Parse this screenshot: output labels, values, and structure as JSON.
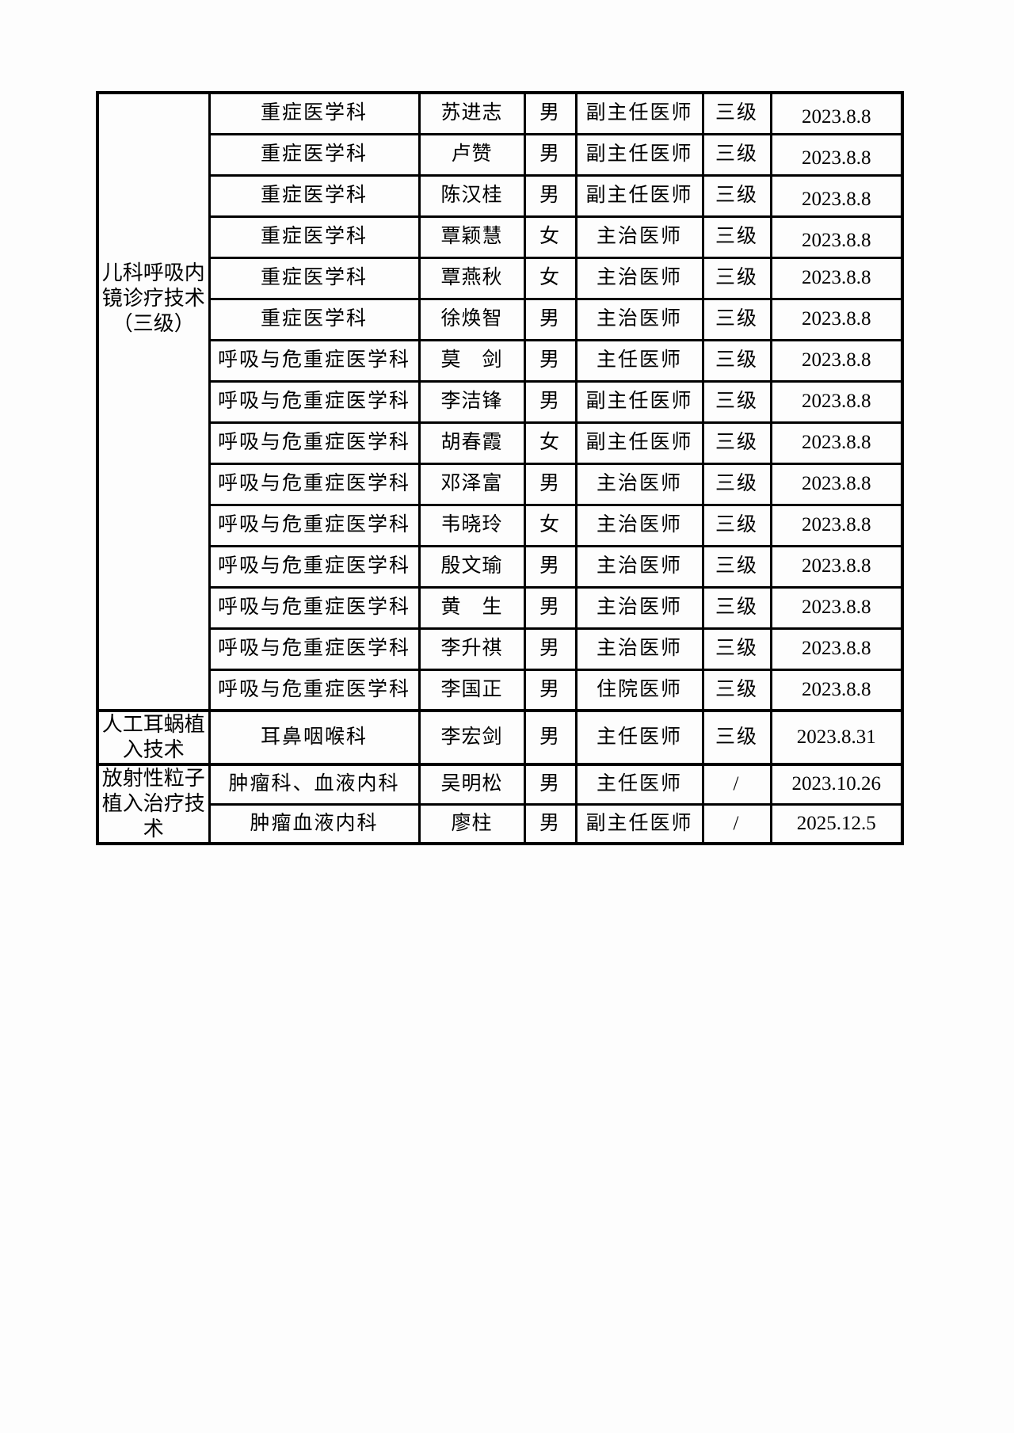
{
  "table": {
    "border_color": "#000000",
    "groups": [
      {
        "technique": "儿科呼吸内镜诊疗技术（三级）",
        "rows": [
          {
            "department": "重症医学科",
            "name": "苏进志",
            "gender": "男",
            "title": "副主任医师",
            "level": "三级",
            "date": "2023.8.8"
          },
          {
            "department": "重症医学科",
            "name": "卢赞",
            "gender": "男",
            "title": "副主任医师",
            "level": "三级",
            "date": "2023.8.8"
          },
          {
            "department": "重症医学科",
            "name": "陈汉桂",
            "gender": "男",
            "title": "副主任医师",
            "level": "三级",
            "date": "2023.8.8"
          },
          {
            "department": "重症医学科",
            "name": "覃颖慧",
            "gender": "女",
            "title": "主治医师",
            "level": "三级",
            "date": "2023.8.8"
          },
          {
            "department": "重症医学科",
            "name": "覃燕秋",
            "gender": "女",
            "title": "主治医师",
            "level": "三级",
            "date": "2023.8.8"
          },
          {
            "department": "重症医学科",
            "name": "徐焕智",
            "gender": "男",
            "title": "主治医师",
            "level": "三级",
            "date": "2023.8.8"
          },
          {
            "department": "呼吸与危重症医学科",
            "name": "莫　剑",
            "gender": "男",
            "title": "主任医师",
            "level": "三级",
            "date": "2023.8.8"
          },
          {
            "department": "呼吸与危重症医学科",
            "name": "李洁锋",
            "gender": "男",
            "title": "副主任医师",
            "level": "三级",
            "date": "2023.8.8"
          },
          {
            "department": "呼吸与危重症医学科",
            "name": "胡春霞",
            "gender": "女",
            "title": "副主任医师",
            "level": "三级",
            "date": "2023.8.8"
          },
          {
            "department": "呼吸与危重症医学科",
            "name": "邓泽富",
            "gender": "男",
            "title": "主治医师",
            "level": "三级",
            "date": "2023.8.8"
          },
          {
            "department": "呼吸与危重症医学科",
            "name": "韦晓玲",
            "gender": "女",
            "title": "主治医师",
            "level": "三级",
            "date": "2023.8.8"
          },
          {
            "department": "呼吸与危重症医学科",
            "name": "殷文瑜",
            "gender": "男",
            "title": "主治医师",
            "level": "三级",
            "date": "2023.8.8"
          },
          {
            "department": "呼吸与危重症医学科",
            "name": "黄　生",
            "gender": "男",
            "title": "主治医师",
            "level": "三级",
            "date": "2023.8.8"
          },
          {
            "department": "呼吸与危重症医学科",
            "name": "李升祺",
            "gender": "男",
            "title": "主治医师",
            "level": "三级",
            "date": "2023.8.8"
          },
          {
            "department": "呼吸与危重症医学科",
            "name": "李国正",
            "gender": "男",
            "title": "住院医师",
            "level": "三级",
            "date": "2023.8.8"
          }
        ]
      },
      {
        "technique": "人工耳蜗植入技术",
        "rows": [
          {
            "department": "耳鼻咽喉科",
            "name": "李宏剑",
            "gender": "男",
            "title": "主任医师",
            "level": "三级",
            "date": "2023.8.31"
          }
        ]
      },
      {
        "technique": "放射性粒子植入治疗技术",
        "rows": [
          {
            "department": "肿瘤科、血液内科",
            "name": "吴明松",
            "gender": "男",
            "title": "主任医师",
            "level": "/",
            "date": "2023.10.26"
          },
          {
            "department": "肿瘤血液内科",
            "name": "廖柱",
            "gender": "男",
            "title": "副主任医师",
            "level": "/",
            "date": "2025.12.5"
          }
        ]
      }
    ]
  }
}
